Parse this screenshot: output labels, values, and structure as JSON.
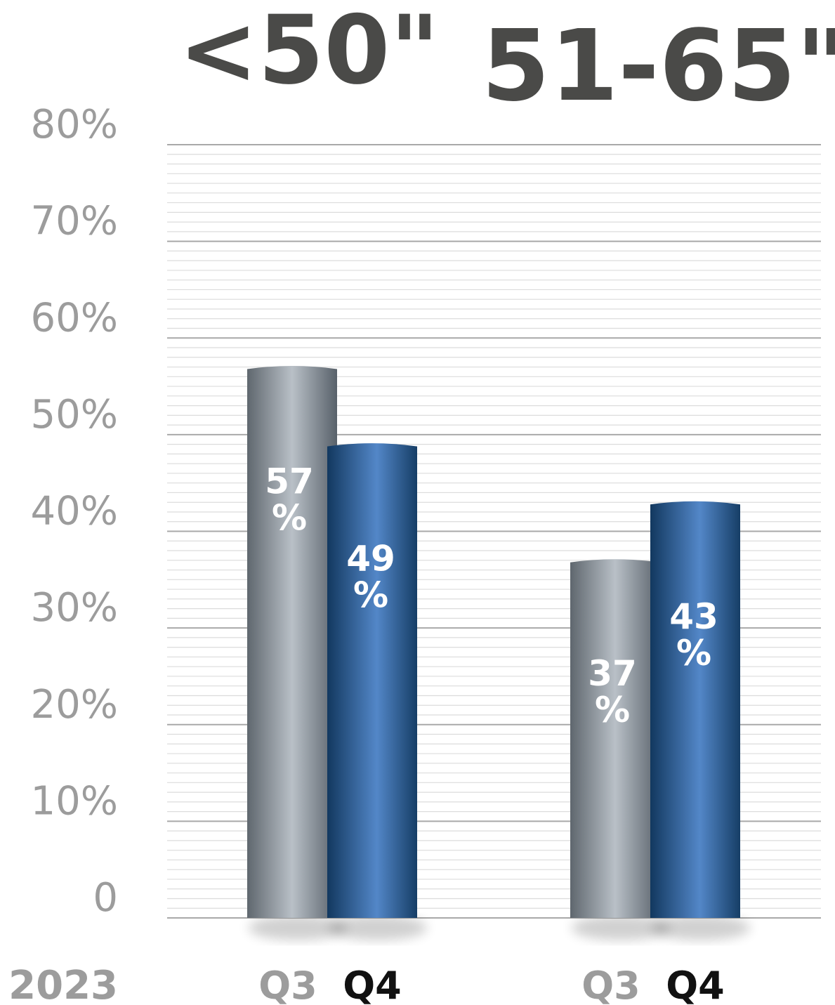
{
  "chart_data": {
    "type": "bar",
    "title": "",
    "xlabel": "2023",
    "ylabel": "",
    "ylim": [
      0,
      80
    ],
    "yticks": [
      {
        "value": 0,
        "label": "0"
      },
      {
        "value": 10,
        "label": "10%"
      },
      {
        "value": 20,
        "label": "20%"
      },
      {
        "value": 30,
        "label": "30%"
      },
      {
        "value": 40,
        "label": "40%"
      },
      {
        "value": 50,
        "label": "50%"
      },
      {
        "value": 60,
        "label": "60%"
      },
      {
        "value": 70,
        "label": "70%"
      },
      {
        "value": 80,
        "label": "80%"
      }
    ],
    "grid": true,
    "groups": [
      "<50\"",
      "51-65\""
    ],
    "categories": [
      "Q3",
      "Q4"
    ],
    "series": [
      {
        "name": "Q3",
        "values": [
          57,
          37
        ],
        "labels": [
          "57%",
          "37%"
        ]
      },
      {
        "name": "Q4",
        "values": [
          49,
          43
        ],
        "labels": [
          "49%",
          "43%"
        ]
      }
    ],
    "colors": {
      "q3_bar": "#a8b0b8",
      "q4_bar": "#3f72b0",
      "q3_tick": "#9c9c9c",
      "q4_tick": "#111111",
      "group_title": "#4a4a48",
      "axis_text": "#9c9c9c"
    }
  }
}
